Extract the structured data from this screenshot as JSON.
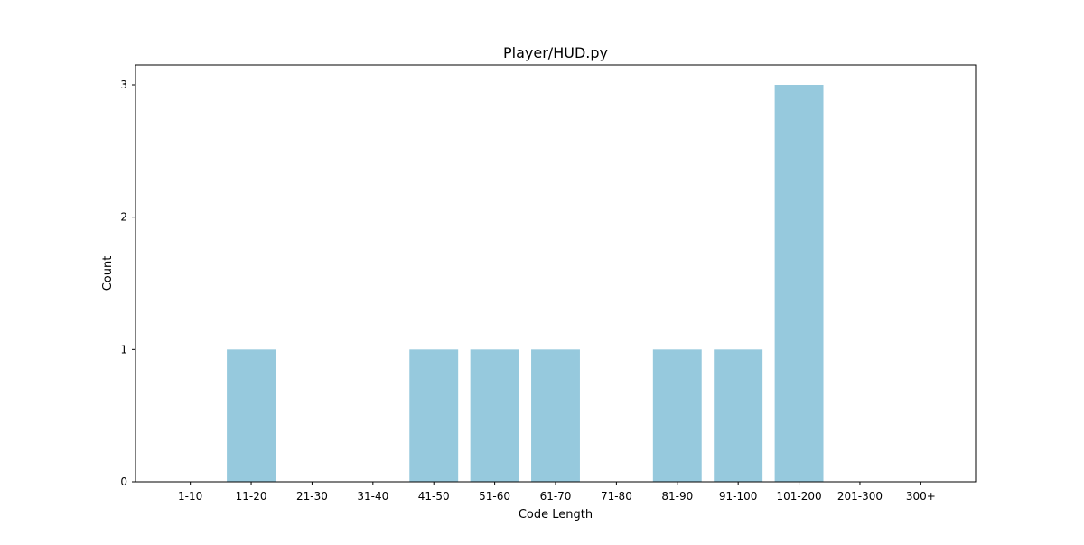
{
  "chart_data": {
    "type": "bar",
    "title": "Player/HUD.py",
    "xlabel": "Code Length",
    "ylabel": "Count",
    "categories": [
      "1-10",
      "11-20",
      "21-30",
      "31-40",
      "41-50",
      "51-60",
      "61-70",
      "71-80",
      "81-90",
      "91-100",
      "101-200",
      "201-300",
      "300+"
    ],
    "values": [
      0,
      1,
      0,
      0,
      1,
      1,
      1,
      0,
      1,
      1,
      3,
      0,
      0
    ],
    "yticks": [
      "0",
      "1",
      "2",
      "3"
    ],
    "ylim": [
      0,
      3.15
    ],
    "grid": false,
    "bar_color": "#96c9dd"
  }
}
